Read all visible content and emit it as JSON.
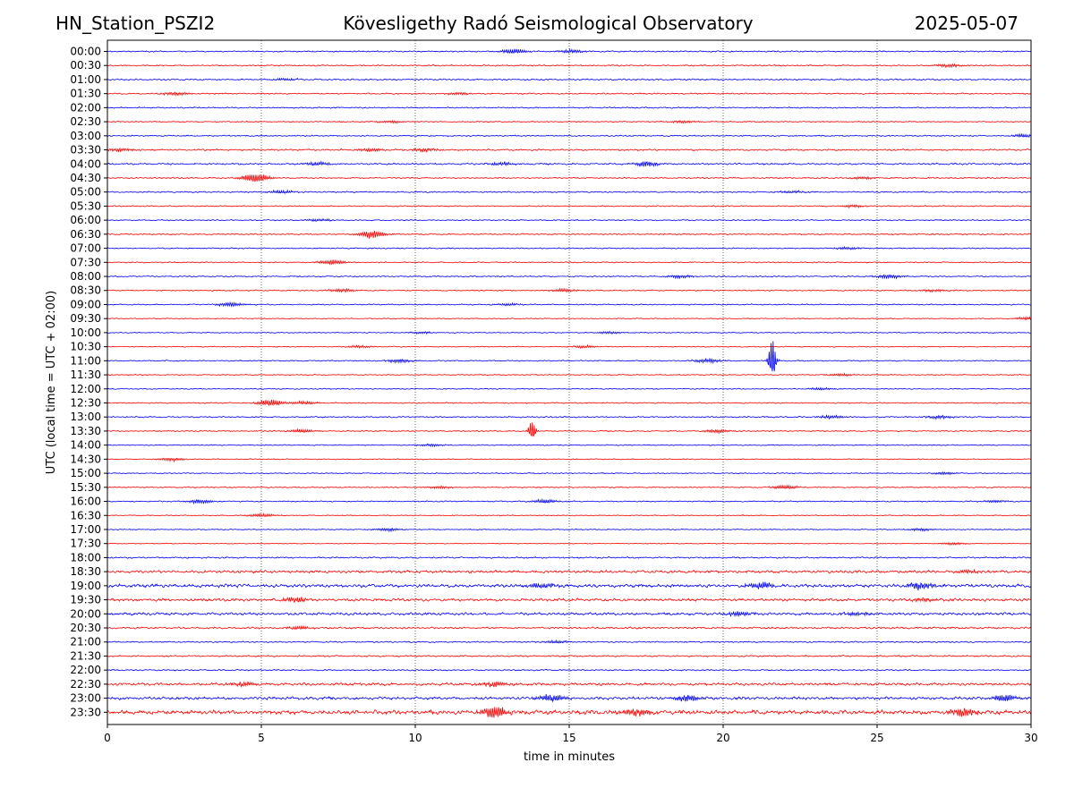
{
  "header": {
    "station": "HN_Station_PSZI2",
    "title": "Kövesligethy Radó Seismological Observatory",
    "date": "2025-05-07"
  },
  "chart_data": {
    "type": "line",
    "subtype": "helicorder",
    "xlabel": "time in minutes",
    "ylabel": "UTC (local time = UTC + 02:00)",
    "xlim": [
      0,
      30
    ],
    "x_ticks": [
      0,
      5,
      10,
      15,
      20,
      25,
      30
    ],
    "grid": "vertical dotted lines at 5-minute intervals",
    "series_colors": [
      "#0000ff",
      "#ff0000"
    ],
    "color_rule": "alternating per row: blue on the hour, red on the half hour",
    "row_labels": [
      "00:00",
      "00:30",
      "01:00",
      "01:30",
      "02:00",
      "02:30",
      "03:00",
      "03:30",
      "04:00",
      "04:30",
      "05:00",
      "05:30",
      "06:00",
      "06:30",
      "07:00",
      "07:30",
      "08:00",
      "08:30",
      "09:00",
      "09:30",
      "10:00",
      "10:30",
      "11:00",
      "11:30",
      "12:00",
      "12:30",
      "13:00",
      "13:30",
      "14:00",
      "14:30",
      "15:00",
      "15:30",
      "16:00",
      "16:30",
      "17:00",
      "17:30",
      "18:00",
      "18:30",
      "19:00",
      "19:30",
      "20:00",
      "20:30",
      "21:00",
      "21:30",
      "22:00",
      "22:30",
      "23:00",
      "23:30"
    ],
    "rows": [
      {
        "noise": 0.8,
        "events": [
          {
            "t": 13.2,
            "a": 3
          },
          {
            "t": 15.1,
            "a": 2
          }
        ]
      },
      {
        "noise": 0.8,
        "events": [
          {
            "t": 27.3,
            "a": 2
          }
        ]
      },
      {
        "noise": 0.9,
        "events": [
          {
            "t": 5.8,
            "a": 1.5
          }
        ]
      },
      {
        "noise": 0.8,
        "events": [
          {
            "t": 2.2,
            "a": 2
          },
          {
            "t": 11.4,
            "a": 1.5
          }
        ]
      },
      {
        "noise": 0.8,
        "events": []
      },
      {
        "noise": 0.7,
        "events": [
          {
            "t": 9.2,
            "a": 1.5
          },
          {
            "t": 18.7,
            "a": 1.5
          }
        ]
      },
      {
        "noise": 0.8,
        "events": [
          {
            "t": 29.8,
            "a": 2
          }
        ]
      },
      {
        "noise": 1.0,
        "events": [
          {
            "t": 0.4,
            "a": 2
          },
          {
            "t": 8.6,
            "a": 2
          },
          {
            "t": 10.3,
            "a": 2
          }
        ]
      },
      {
        "noise": 1.0,
        "events": [
          {
            "t": 6.8,
            "a": 2.5
          },
          {
            "t": 12.8,
            "a": 2
          },
          {
            "t": 17.5,
            "a": 3
          }
        ]
      },
      {
        "noise": 0.8,
        "events": [
          {
            "t": 4.8,
            "a": 6
          },
          {
            "t": 24.5,
            "a": 1.5
          }
        ]
      },
      {
        "noise": 0.8,
        "events": [
          {
            "t": 5.6,
            "a": 2
          },
          {
            "t": 22.3,
            "a": 1.5
          }
        ]
      },
      {
        "noise": 0.7,
        "events": [
          {
            "t": 24.2,
            "a": 1.5
          }
        ]
      },
      {
        "noise": 0.7,
        "events": [
          {
            "t": 6.9,
            "a": 1.5
          }
        ]
      },
      {
        "noise": 0.8,
        "events": [
          {
            "t": 8.6,
            "a": 5
          }
        ]
      },
      {
        "noise": 0.7,
        "events": [
          {
            "t": 24.1,
            "a": 1.5
          }
        ]
      },
      {
        "noise": 0.7,
        "events": [
          {
            "t": 7.3,
            "a": 3
          }
        ]
      },
      {
        "noise": 0.8,
        "events": [
          {
            "t": 18.6,
            "a": 2
          },
          {
            "t": 25.4,
            "a": 2.5
          }
        ]
      },
      {
        "noise": 0.7,
        "events": [
          {
            "t": 7.6,
            "a": 2
          },
          {
            "t": 14.8,
            "a": 2
          },
          {
            "t": 26.8,
            "a": 1.5
          }
        ]
      },
      {
        "noise": 0.7,
        "events": [
          {
            "t": 4.0,
            "a": 2.5
          },
          {
            "t": 13.0,
            "a": 1.5
          }
        ]
      },
      {
        "noise": 0.6,
        "events": [
          {
            "t": 29.9,
            "a": 2
          }
        ]
      },
      {
        "noise": 0.6,
        "events": [
          {
            "t": 10.2,
            "a": 1.5
          },
          {
            "t": 16.3,
            "a": 1.5
          }
        ]
      },
      {
        "noise": 0.6,
        "events": [
          {
            "t": 8.2,
            "a": 1.5
          },
          {
            "t": 15.5,
            "a": 1.5
          }
        ]
      },
      {
        "noise": 0.7,
        "events": [
          {
            "t": 9.5,
            "a": 2
          },
          {
            "t": 19.5,
            "a": 2.5
          },
          {
            "t": 21.6,
            "a": 28
          }
        ]
      },
      {
        "noise": 0.6,
        "events": [
          {
            "t": 23.8,
            "a": 1.5
          }
        ]
      },
      {
        "noise": 0.6,
        "events": [
          {
            "t": 23.2,
            "a": 1.5
          }
        ]
      },
      {
        "noise": 0.7,
        "events": [
          {
            "t": 5.3,
            "a": 4
          },
          {
            "t": 6.4,
            "a": 2
          }
        ]
      },
      {
        "noise": 0.8,
        "events": [
          {
            "t": 23.5,
            "a": 2
          },
          {
            "t": 27.0,
            "a": 2
          }
        ]
      },
      {
        "noise": 0.7,
        "events": [
          {
            "t": 6.3,
            "a": 2
          },
          {
            "t": 13.8,
            "a": 14
          },
          {
            "t": 19.8,
            "a": 2
          }
        ]
      },
      {
        "noise": 0.6,
        "events": [
          {
            "t": 10.5,
            "a": 1.5
          }
        ]
      },
      {
        "noise": 0.6,
        "events": [
          {
            "t": 2.1,
            "a": 2
          }
        ]
      },
      {
        "noise": 0.6,
        "events": [
          {
            "t": 27.2,
            "a": 1.5
          }
        ]
      },
      {
        "noise": 0.7,
        "events": [
          {
            "t": 10.8,
            "a": 1.5
          },
          {
            "t": 22.0,
            "a": 2.5
          }
        ]
      },
      {
        "noise": 0.7,
        "events": [
          {
            "t": 3.0,
            "a": 2.5
          },
          {
            "t": 14.2,
            "a": 2.5
          },
          {
            "t": 28.8,
            "a": 1.5
          }
        ]
      },
      {
        "noise": 0.6,
        "events": [
          {
            "t": 5.0,
            "a": 2
          }
        ]
      },
      {
        "noise": 0.6,
        "events": [
          {
            "t": 9.1,
            "a": 2
          },
          {
            "t": 26.4,
            "a": 1.5
          }
        ]
      },
      {
        "noise": 0.5,
        "events": [
          {
            "t": 27.5,
            "a": 1.5
          }
        ]
      },
      {
        "noise": 0.9,
        "events": []
      },
      {
        "noise": 1.6,
        "events": [
          {
            "t": 28.0,
            "a": 2
          }
        ]
      },
      {
        "noise": 2.0,
        "events": [
          {
            "t": 14.1,
            "a": 3
          },
          {
            "t": 21.2,
            "a": 4
          },
          {
            "t": 26.4,
            "a": 4
          }
        ]
      },
      {
        "noise": 1.7,
        "events": [
          {
            "t": 6.1,
            "a": 3
          },
          {
            "t": 26.5,
            "a": 2
          }
        ]
      },
      {
        "noise": 1.6,
        "events": [
          {
            "t": 20.5,
            "a": 3
          },
          {
            "t": 24.3,
            "a": 2
          }
        ]
      },
      {
        "noise": 1.1,
        "events": [
          {
            "t": 6.2,
            "a": 2
          }
        ]
      },
      {
        "noise": 0.8,
        "events": [
          {
            "t": 14.6,
            "a": 1.5
          }
        ]
      },
      {
        "noise": 0.9,
        "events": []
      },
      {
        "noise": 0.8,
        "events": []
      },
      {
        "noise": 1.6,
        "events": [
          {
            "t": 4.4,
            "a": 2.5
          },
          {
            "t": 12.6,
            "a": 3
          }
        ]
      },
      {
        "noise": 1.7,
        "events": [
          {
            "t": 14.4,
            "a": 4
          },
          {
            "t": 18.8,
            "a": 4
          },
          {
            "t": 29.1,
            "a": 4
          }
        ]
      },
      {
        "noise": 2.5,
        "events": [
          {
            "t": 12.6,
            "a": 7
          },
          {
            "t": 27.8,
            "a": 5
          },
          {
            "t": 17.2,
            "a": 4
          }
        ]
      }
    ]
  }
}
